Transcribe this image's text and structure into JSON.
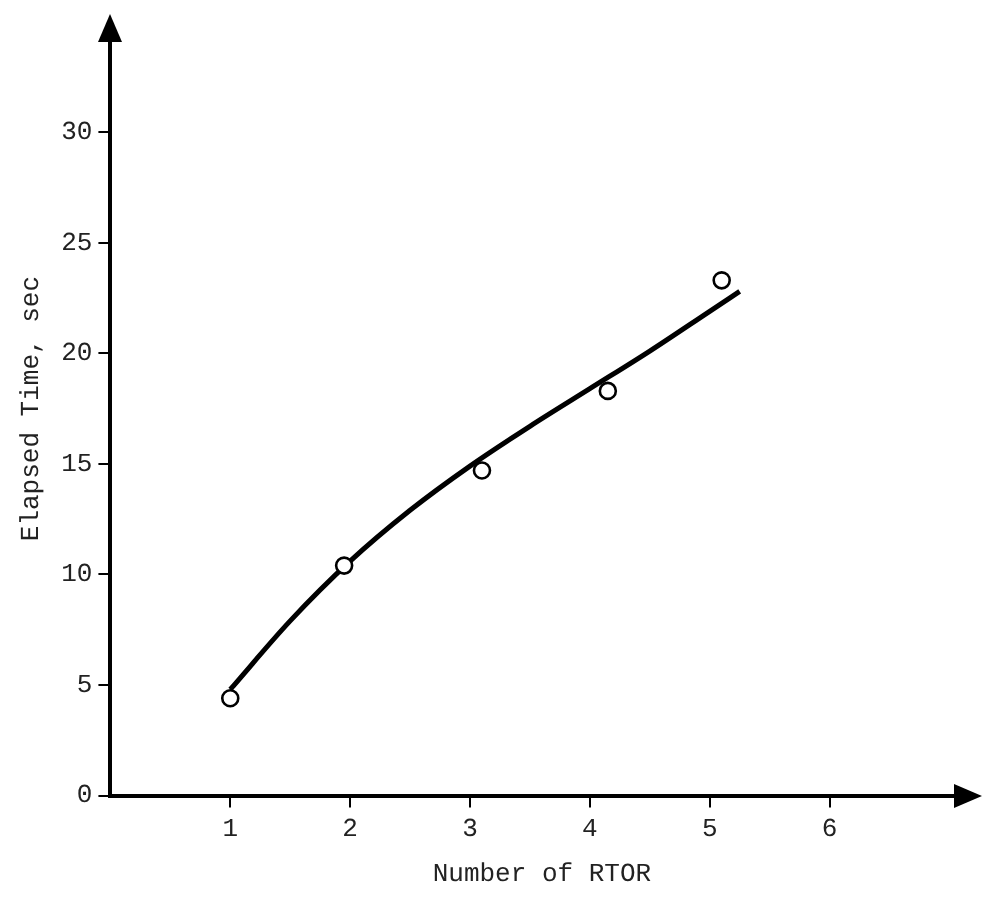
{
  "chart_data": {
    "type": "scatter",
    "xlabel": "Number of RTOR",
    "ylabel": "Elapsed Time, sec",
    "xlim": [
      0,
      7.2
    ],
    "ylim": [
      0,
      35
    ],
    "xticks": [
      1,
      2,
      3,
      4,
      5,
      6
    ],
    "yticks": [
      0,
      5,
      10,
      15,
      20,
      25,
      30
    ],
    "series": [
      {
        "marker": "circle",
        "color": "#000000",
        "x": [
          1,
          1.95,
          3.1,
          4.15,
          5.1
        ],
        "values": [
          4.4,
          10.4,
          14.7,
          18.3,
          23.3
        ]
      },
      {
        "type": "line",
        "marker": "none",
        "color": "#000000",
        "x": [
          1,
          1.5,
          2,
          2.5,
          3,
          3.5,
          4,
          4.5,
          5,
          5.25
        ],
        "values": [
          4.8,
          7.9,
          10.6,
          12.9,
          14.9,
          16.7,
          18.4,
          20.1,
          21.9,
          22.8
        ]
      }
    ]
  }
}
